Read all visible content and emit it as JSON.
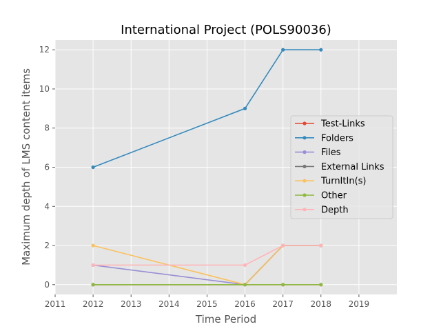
{
  "chart_data": {
    "type": "line",
    "title": "International Project (POLS90036)",
    "xlabel": "Time Period",
    "ylabel": "Maximum depth of LMS content items",
    "xlim": [
      2011,
      2020
    ],
    "ylim": [
      -0.5,
      12.5
    ],
    "xticks": [
      2011,
      2012,
      2013,
      2014,
      2015,
      2016,
      2017,
      2018,
      2019
    ],
    "yticks": [
      0,
      2,
      4,
      6,
      8,
      10,
      12
    ],
    "grid": true,
    "legend_position": "center-right",
    "x": [
      2012,
      2016,
      2017,
      2018
    ],
    "series": [
      {
        "name": "Test-Links",
        "color": "#e24a33",
        "values": [
          0,
          0,
          0,
          0
        ]
      },
      {
        "name": "Folders",
        "color": "#348abd",
        "values": [
          6,
          9,
          12,
          12
        ]
      },
      {
        "name": "Files",
        "color": "#988ed5",
        "values": [
          1,
          0,
          2,
          2
        ]
      },
      {
        "name": "External Links",
        "color": "#777777",
        "values": [
          0,
          0,
          2,
          2
        ]
      },
      {
        "name": "TurnItIn(s)",
        "color": "#fbc15e",
        "values": [
          2,
          0,
          2,
          2
        ]
      },
      {
        "name": "Other",
        "color": "#8eba42",
        "values": [
          0,
          0,
          0,
          0
        ]
      },
      {
        "name": "Depth",
        "color": "#ffb5b8",
        "values": [
          1,
          1,
          2,
          2
        ]
      }
    ]
  }
}
